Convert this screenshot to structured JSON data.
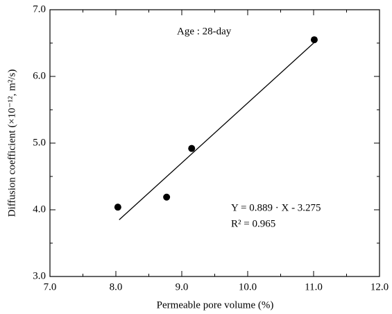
{
  "chart_data": {
    "type": "scatter",
    "x_label": "Permeable pore volume (%)",
    "y_label": "Diffusion coefficient (×10⁻¹², m²/s)",
    "annotations": [
      "Age : 28-day",
      "Y = 0.889 · X - 3.275",
      "R² = 0.965"
    ],
    "series": [
      {
        "color": "#000000",
        "x": [
          8.03,
          8.77,
          9.15,
          11.01
        ],
        "values": [
          4.04,
          4.19,
          4.92,
          6.55
        ]
      }
    ],
    "fit_line": {
      "color": "#000000",
      "x": [
        8.05,
        11.0
      ],
      "values": [
        3.85,
        6.5
      ]
    },
    "xlim": [
      7,
      12
    ],
    "ylim": [
      3,
      7
    ],
    "xticks": [
      {
        "value": 7,
        "label": "7.0"
      },
      {
        "value": 8,
        "label": "8.0"
      },
      {
        "value": 9,
        "label": "9.0"
      },
      {
        "value": 10,
        "label": "10.0"
      },
      {
        "value": 11,
        "label": "11.0"
      },
      {
        "value": 12,
        "label": "12.0"
      }
    ],
    "yticks": [
      {
        "value": 3,
        "label": "3.0"
      },
      {
        "value": 4,
        "label": "4.0"
      },
      {
        "value": 5,
        "label": "5.0"
      },
      {
        "value": 6,
        "label": "6.0"
      },
      {
        "value": 7,
        "label": "7.0"
      }
    ],
    "xminor": [
      7.5,
      8.5,
      9.5,
      10.5,
      11.5
    ],
    "yminor": [
      3.5,
      4.5,
      5.5,
      6.5
    ]
  }
}
